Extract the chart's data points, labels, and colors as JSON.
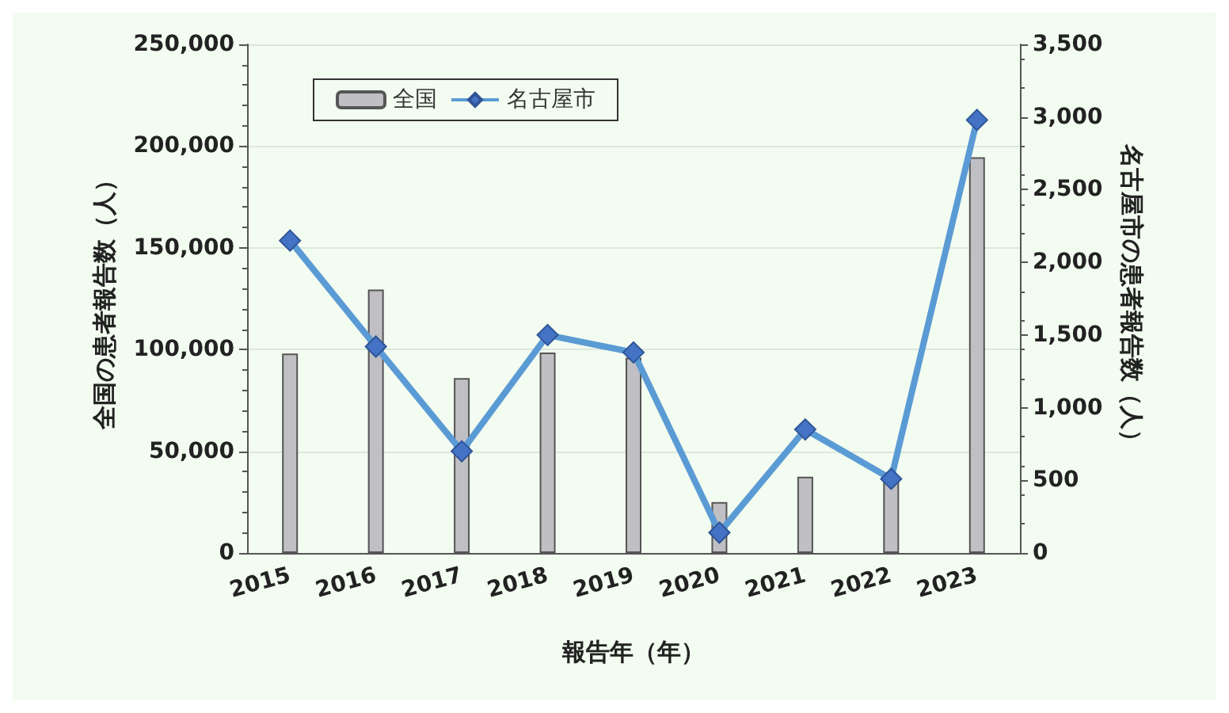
{
  "chart_data": {
    "type": "bar",
    "categories": [
      "2015",
      "2016",
      "2017",
      "2018",
      "2019",
      "2020",
      "2021",
      "2022",
      "2023"
    ],
    "xlabel": "報告年（年）",
    "ylabel": "全国の患者報告数（人）",
    "y2label": "名古屋市の患者報告数（人）",
    "series": [
      {
        "name": "全国",
        "color": "#bfbfc4",
        "values": [
          98000,
          129500,
          86000,
          98500,
          96000,
          25000,
          37500,
          35000,
          194500
        ]
      },
      {
        "name": "名古屋市",
        "type": "line",
        "axis": "y2",
        "color": "#5b9bd5",
        "marker": "diamond",
        "values": [
          2150,
          1420,
          700,
          1500,
          1380,
          140,
          850,
          510,
          2980
        ]
      }
    ],
    "ylim": [
      0,
      250000
    ],
    "yticks": [
      0,
      {
        "value": 50000,
        "label": "50,000"
      },
      {
        "value": 100000,
        "label": "100,000"
      },
      {
        "value": 150000,
        "label": "150,000"
      },
      {
        "value": 200000,
        "label": "200,000"
      },
      {
        "value": 250000,
        "label": "250,000"
      }
    ],
    "y2lim": [
      0,
      3500
    ],
    "y2ticks": [
      0,
      500,
      {
        "value": 1000,
        "label": "1,000"
      },
      {
        "value": 1500,
        "label": "1,500"
      },
      {
        "value": 2000,
        "label": "2,000"
      },
      {
        "value": 2500,
        "label": "2,500"
      },
      {
        "value": 3000,
        "label": "3,000"
      },
      {
        "value": 3500,
        "label": "3,500"
      }
    ],
    "grid": "y",
    "legend": "top left"
  }
}
